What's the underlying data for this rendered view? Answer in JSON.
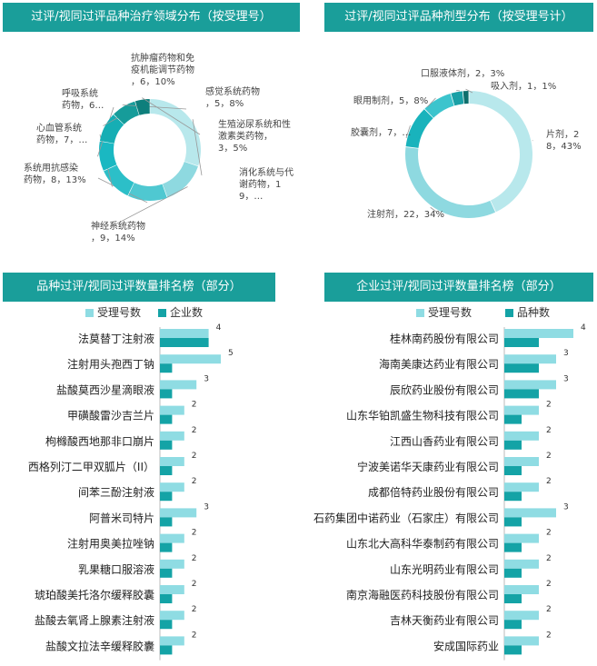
{
  "colors": {
    "banner": "#1a9e9a",
    "light": "#8fdce3",
    "dark": "#14a3a6"
  },
  "chart_data": [
    {
      "type": "pie",
      "title": "过评/视同过评品种治疗领域分布（按受理号）",
      "slices": [
        {
          "label": "消化系统与代谢药物，19，…",
          "value": 19
        },
        {
          "label": "神经系统药物，9，14%",
          "value": 9
        },
        {
          "label": "系统用抗感染药物，8，13%",
          "value": 8
        },
        {
          "label": "心血管系统药物，7，…",
          "value": 7
        },
        {
          "label": "呼吸系统药物，6…",
          "value": 6
        },
        {
          "label": "抗肿瘤药物和免疫机能调节药物，6，10%",
          "value": 6
        },
        {
          "label": "感觉系统药物，5，8%",
          "value": 5
        },
        {
          "label": "生殖泌尿系统和性激素类药物，3，5%",
          "value": 3
        }
      ]
    },
    {
      "type": "pie",
      "title": "过评/视同过评品种剂型分布（按受理号计）",
      "slices": [
        {
          "label": "片剂，28，43%",
          "value": 28
        },
        {
          "label": "注射剂，22，34%",
          "value": 22
        },
        {
          "label": "胶囊剂，7，…",
          "value": 7
        },
        {
          "label": "眼用制剂，5，8%",
          "value": 5
        },
        {
          "label": "口服液体剂，2，3%",
          "value": 2
        },
        {
          "label": "吸入剂，1，1%",
          "value": 1
        }
      ]
    },
    {
      "type": "bar",
      "title": "品种过评/视同过评数量排名榜（部分）",
      "categories": [
        "法莫替丁注射液",
        "注射用头孢西丁钠",
        "盐酸莫西沙星滴眼液",
        "甲磺酸雷沙吉兰片",
        "枸橼酸西地那非口崩片",
        "西格列汀二甲双胍片（II）",
        "间苯三酚注射液",
        "阿普米司特片",
        "注射用奥美拉唑钠",
        "乳果糖口服溶液",
        "琥珀酸美托洛尔缓释胶囊",
        "盐酸去氧肾上腺素注射液",
        "盐酸文拉法辛缓释胶囊"
      ],
      "series": [
        {
          "name": "受理号数",
          "values": [
            4,
            5,
            3,
            2,
            2,
            2,
            2,
            3,
            2,
            2,
            2,
            2,
            2
          ]
        },
        {
          "name": "企业数",
          "values": [
            4,
            1,
            1,
            1,
            1,
            1,
            1,
            1,
            1,
            1,
            1,
            1,
            1
          ]
        }
      ],
      "xlim": [
        0,
        5
      ]
    },
    {
      "type": "bar",
      "title": "企业过评/视同过评数量排名榜（部分）",
      "categories": [
        "桂林南药股份有限公司",
        "海南美康达药业有限公司",
        "辰欣药业股份有限公司",
        "山东华铂凯盛生物科技有限公司",
        "江西山香药业有限公司",
        "宁波美诺华天康药业有限公司",
        "成都倍特药业股份有限公司",
        "石药集团中诺药业（石家庄）有限公司",
        "山东北大高科华泰制药有限公司",
        "山东光明药业有限公司",
        "南京海融医药科技股份有限公司",
        "吉林天衡药业有限公司",
        "安成国际药业"
      ],
      "series": [
        {
          "name": "受理号数",
          "values": [
            4,
            3,
            3,
            2,
            2,
            2,
            2,
            3,
            2,
            2,
            2,
            2,
            2
          ]
        },
        {
          "name": "品种数",
          "values": [
            2,
            2,
            2,
            1,
            1,
            1,
            1,
            1,
            1,
            1,
            1,
            1,
            1
          ]
        }
      ],
      "xlim": [
        0,
        4
      ]
    }
  ]
}
